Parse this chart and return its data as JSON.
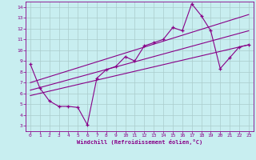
{
  "xlabel": "Windchill (Refroidissement éolien,°C)",
  "bg_color": "#c8eef0",
  "line_color": "#880088",
  "grid_color": "#aacccc",
  "xlim": [
    -0.5,
    23.5
  ],
  "ylim": [
    2.5,
    14.5
  ],
  "xticks": [
    0,
    1,
    2,
    3,
    4,
    5,
    6,
    7,
    8,
    9,
    10,
    11,
    12,
    13,
    14,
    15,
    16,
    17,
    18,
    19,
    20,
    21,
    22,
    23
  ],
  "yticks": [
    3,
    4,
    5,
    6,
    7,
    8,
    9,
    10,
    11,
    12,
    13,
    14
  ],
  "data_x": [
    0,
    1,
    2,
    3,
    4,
    5,
    6,
    7,
    8,
    9,
    10,
    11,
    12,
    13,
    14,
    15,
    16,
    17,
    18,
    19,
    20,
    21,
    22,
    23
  ],
  "data_y": [
    8.7,
    6.5,
    5.3,
    4.8,
    4.8,
    4.7,
    3.1,
    7.4,
    8.2,
    8.5,
    9.4,
    9.0,
    10.4,
    10.7,
    11.0,
    12.1,
    11.8,
    14.3,
    13.2,
    11.8,
    8.3,
    9.3,
    10.3,
    10.5
  ],
  "ref_line1_x": [
    0,
    23
  ],
  "ref_line1_y": [
    6.3,
    11.8
  ],
  "ref_line2_x": [
    0,
    23
  ],
  "ref_line2_y": [
    7.0,
    13.3
  ],
  "ref_line3_x": [
    0,
    23
  ],
  "ref_line3_y": [
    5.8,
    10.5
  ]
}
